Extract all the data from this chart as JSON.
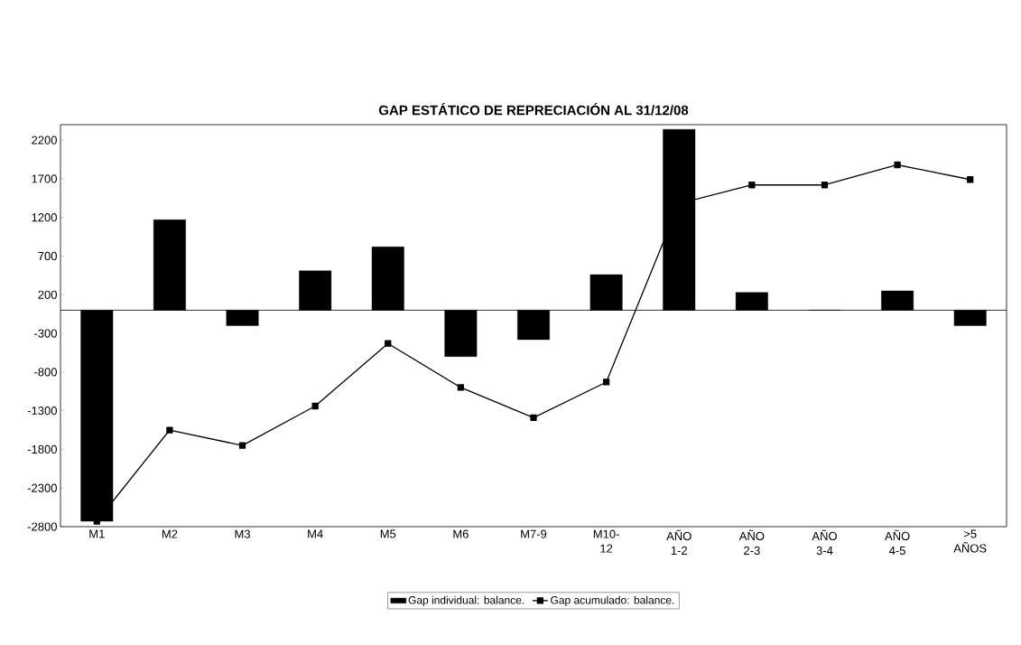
{
  "chart_data": {
    "type": "bar",
    "title": "GAP ESTÁTICO DE REPRECIACIÓN AL 31/12/08",
    "categories": [
      "M1",
      "M2",
      "M3",
      "M4",
      "M5",
      "M6",
      "M7-9",
      "M10-12",
      "AÑO 1-2",
      "AÑO 2-3",
      "AÑO 3-4",
      "AÑO 4-5",
      ">5 AÑOS"
    ],
    "series": [
      {
        "name": "Gap individual: balance.",
        "color": "#000000",
        "values": [
          -2730,
          1170,
          -200,
          510,
          820,
          -600,
          -380,
          460,
          2340,
          230,
          0,
          250,
          -200
        ]
      },
      {
        "name": "Gap acumulado: balance.",
        "type": "line",
        "color": "#000000",
        "marker": "square",
        "values": [
          -2730,
          -1550,
          -1750,
          -1240,
          -430,
          -1000,
          -1390,
          -930,
          1380,
          1620,
          1620,
          1880,
          1690
        ]
      }
    ],
    "ylim": [
      -2800,
      2400
    ],
    "yticks": [
      -2800,
      -2300,
      -1800,
      -1300,
      -800,
      -300,
      200,
      700,
      1200,
      1700,
      2200
    ],
    "grid": false,
    "legend": "bottom"
  }
}
